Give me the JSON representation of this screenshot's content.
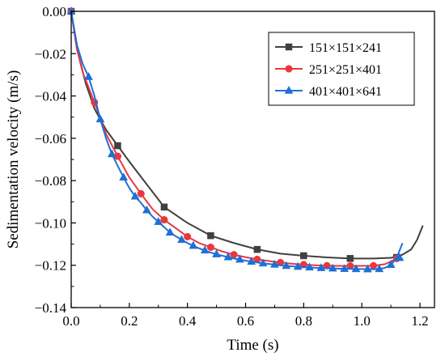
{
  "chart_data": {
    "type": "line",
    "xlabel": "Time (s)",
    "ylabel": "Sedimentation velocity (m/s)",
    "xlim": [
      0.0,
      1.25
    ],
    "ylim": [
      -0.14,
      0.0
    ],
    "x_ticks": [
      0.0,
      0.2,
      0.4,
      0.6,
      0.8,
      1.0,
      1.2
    ],
    "y_ticks": [
      0.0,
      -0.02,
      -0.04,
      -0.06,
      -0.08,
      -0.1,
      -0.12,
      -0.14
    ],
    "x_tick_labels": [
      "0.0",
      "0.2",
      "0.4",
      "0.6",
      "0.8",
      "1.0",
      "1.2"
    ],
    "y_tick_labels": [
      "0.00",
      "−0.02",
      "−0.04",
      "−0.06",
      "−0.08",
      "−0.10",
      "−0.12",
      "−0.14"
    ],
    "grid": false,
    "legend_position": "top-right",
    "series": [
      {
        "name": "151×151×241",
        "color": "#404040",
        "marker": "square",
        "x": [
          0.0,
          0.02,
          0.05,
          0.08,
          0.12,
          0.16,
          0.2,
          0.25,
          0.32,
          0.4,
          0.48,
          0.56,
          0.64,
          0.72,
          0.8,
          0.88,
          0.96,
          1.04,
          1.1,
          1.14,
          1.17,
          1.19,
          1.21
        ],
        "y": [
          0.0,
          -0.018,
          -0.034,
          -0.046,
          -0.056,
          -0.0635,
          -0.071,
          -0.08,
          -0.0925,
          -0.1,
          -0.106,
          -0.1095,
          -0.1125,
          -0.1145,
          -0.1155,
          -0.1163,
          -0.1168,
          -0.1168,
          -0.1165,
          -0.115,
          -0.1125,
          -0.108,
          -0.1012
        ],
        "marker_x": [
          0.0,
          0.16,
          0.32,
          0.48,
          0.64,
          0.8,
          0.96,
          1.12
        ],
        "marker_y": [
          0.0,
          -0.0635,
          -0.0925,
          -0.106,
          -0.1125,
          -0.1155,
          -0.1168,
          -0.1163
        ]
      },
      {
        "name": "251×251×401",
        "color": "#e8383d",
        "marker": "circle",
        "x": [
          0.0,
          0.02,
          0.04,
          0.06,
          0.08,
          0.12,
          0.16,
          0.2,
          0.24,
          0.28,
          0.32,
          0.36,
          0.4,
          0.44,
          0.48,
          0.52,
          0.56,
          0.6,
          0.64,
          0.68,
          0.72,
          0.76,
          0.8,
          0.84,
          0.88,
          0.92,
          0.96,
          1.0,
          1.04,
          1.08,
          1.12
        ],
        "y": [
          0.0,
          -0.018,
          -0.029,
          -0.036,
          -0.043,
          -0.058,
          -0.0685,
          -0.0785,
          -0.0862,
          -0.0935,
          -0.0985,
          -0.1025,
          -0.1065,
          -0.1095,
          -0.1115,
          -0.1135,
          -0.115,
          -0.1162,
          -0.1172,
          -0.118,
          -0.1187,
          -0.1193,
          -0.1197,
          -0.12,
          -0.1202,
          -0.1203,
          -0.1203,
          -0.1203,
          -0.1202,
          -0.1195,
          -0.1168
        ],
        "marker_x": [
          0.0,
          0.08,
          0.16,
          0.24,
          0.32,
          0.4,
          0.48,
          0.56,
          0.64,
          0.72,
          0.8,
          0.88,
          0.96,
          1.04,
          1.12
        ],
        "marker_y": [
          0.0,
          -0.043,
          -0.0685,
          -0.0862,
          -0.0985,
          -0.1065,
          -0.1115,
          -0.115,
          -0.1172,
          -0.1187,
          -0.1197,
          -0.1202,
          -0.1203,
          -0.1202,
          -0.1168
        ]
      },
      {
        "name": "401×401×641",
        "color": "#1f6fd6",
        "marker": "triangle",
        "x": [
          0.0,
          0.02,
          0.04,
          0.06,
          0.08,
          0.1,
          0.12,
          0.14,
          0.16,
          0.18,
          0.2,
          0.22,
          0.24,
          0.26,
          0.28,
          0.3,
          0.32,
          0.34,
          0.36,
          0.38,
          0.4,
          0.42,
          0.44,
          0.46,
          0.48,
          0.5,
          0.52,
          0.54,
          0.56,
          0.58,
          0.6,
          0.62,
          0.64,
          0.66,
          0.68,
          0.7,
          0.72,
          0.74,
          0.76,
          0.78,
          0.8,
          0.82,
          0.84,
          0.86,
          0.88,
          0.9,
          0.92,
          0.94,
          0.96,
          0.98,
          1.0,
          1.02,
          1.04,
          1.06,
          1.08,
          1.1,
          1.12,
          1.14
        ],
        "y": [
          0.0,
          -0.016,
          -0.025,
          -0.031,
          -0.04,
          -0.051,
          -0.06,
          -0.0675,
          -0.073,
          -0.0785,
          -0.0835,
          -0.0875,
          -0.0905,
          -0.094,
          -0.097,
          -0.0995,
          -0.102,
          -0.1045,
          -0.1063,
          -0.108,
          -0.1095,
          -0.1108,
          -0.112,
          -0.113,
          -0.114,
          -0.1148,
          -0.1155,
          -0.1162,
          -0.1168,
          -0.1173,
          -0.1178,
          -0.1183,
          -0.1187,
          -0.1191,
          -0.1194,
          -0.1197,
          -0.12,
          -0.1203,
          -0.1205,
          -0.1207,
          -0.1209,
          -0.121,
          -0.1212,
          -0.1213,
          -0.1214,
          -0.1215,
          -0.1216,
          -0.1217,
          -0.1217,
          -0.1218,
          -0.1218,
          -0.1219,
          -0.1219,
          -0.1218,
          -0.1212,
          -0.1198,
          -0.1165,
          -0.1095
        ],
        "marker_x": [
          0.0,
          0.06,
          0.1,
          0.14,
          0.18,
          0.22,
          0.26,
          0.3,
          0.34,
          0.38,
          0.42,
          0.46,
          0.5,
          0.54,
          0.58,
          0.62,
          0.66,
          0.7,
          0.74,
          0.78,
          0.82,
          0.86,
          0.9,
          0.94,
          0.98,
          1.02,
          1.06,
          1.1,
          1.13
        ],
        "marker_y": [
          0.0,
          -0.031,
          -0.051,
          -0.0675,
          -0.0785,
          -0.0875,
          -0.094,
          -0.0995,
          -0.1045,
          -0.108,
          -0.1108,
          -0.113,
          -0.1148,
          -0.1162,
          -0.1173,
          -0.1183,
          -0.1191,
          -0.1197,
          -0.1203,
          -0.1207,
          -0.121,
          -0.1213,
          -0.1215,
          -0.1217,
          -0.1218,
          -0.1219,
          -0.1218,
          -0.1198,
          -0.1165
        ]
      }
    ]
  }
}
